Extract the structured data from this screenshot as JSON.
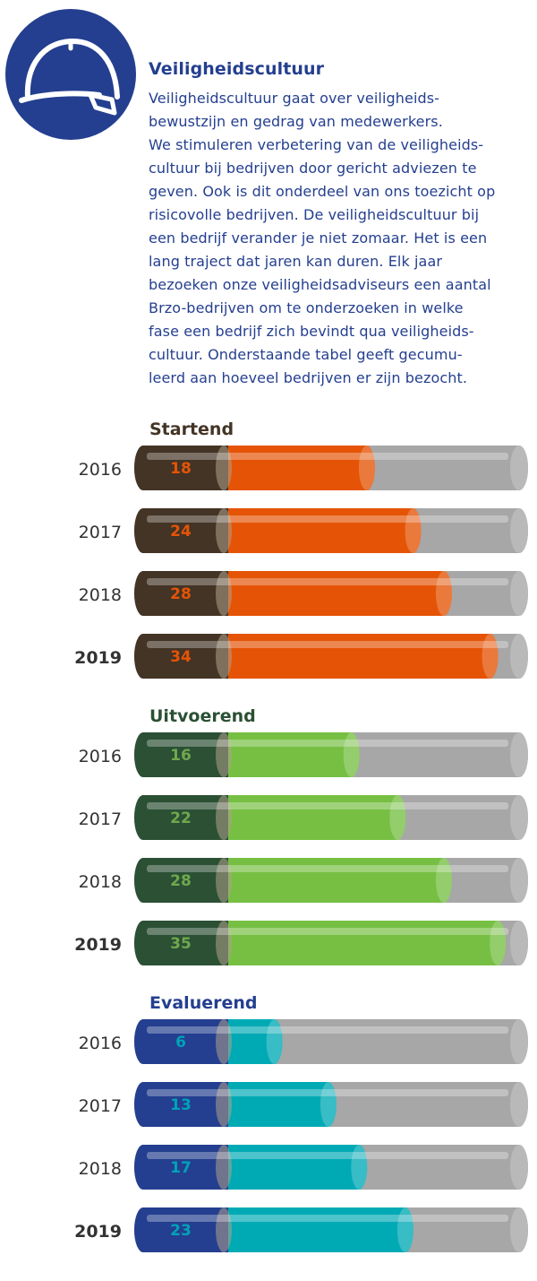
{
  "icon": {
    "name": "safety-helmet-icon",
    "circle_color": "#243f8f",
    "line_color": "#ffffff"
  },
  "header": {
    "title": "Veiligheidscultuur",
    "lines": [
      "Veiligheidscultuur gaat over veiligheids-",
      "bewustzijn en gedrag van medewerkers.",
      "We stimuleren  verbetering van de veiligheids-",
      "cultuur bij bedrijven door gericht adviezen te",
      "geven. Ook is dit onderdeel van ons toezicht op",
      "risicovolle bedrijven. De veiligheidscultuur bij",
      "een bedrijf verander je niet zomaar. Het is een",
      "lang traject dat jaren kan duren. Elk jaar",
      "bezoeken onze veiligheidsadviseurs een aantal",
      "Brzo-bedrijven om te onderzoeken in welke",
      "fase een bedrijf zich bevindt qua veiligheids-",
      "cultuur. Onderstaande tabel geeft gecumu-",
      "leerd aan hoeveel bedrijven er zijn bezocht."
    ]
  },
  "chart_data": {
    "type": "bar",
    "orientation": "horizontal",
    "xlim": [
      0,
      38
    ],
    "highlight_category": "2019",
    "groups": [
      {
        "name": "Startend",
        "colors": {
          "cap": "#433425",
          "fill": "#e55406",
          "value": "#e55406",
          "title": "#433425"
        },
        "categories": [
          "2016",
          "2017",
          "2018",
          "2019"
        ],
        "values": [
          18,
          24,
          28,
          34
        ]
      },
      {
        "name": "Uitvoerend",
        "colors": {
          "cap": "#2b5034",
          "fill": "#76bf43",
          "value": "#6fa84e",
          "title": "#2b5034"
        },
        "categories": [
          "2016",
          "2017",
          "2018",
          "2019"
        ],
        "values": [
          16,
          22,
          28,
          35
        ]
      },
      {
        "name": "Evaluerend",
        "colors": {
          "cap": "#243f8f",
          "fill": "#00aab5",
          "value": "#00a2b8",
          "title": "#243f8f"
        },
        "categories": [
          "2016",
          "2017",
          "2018",
          "2019"
        ],
        "values": [
          6,
          13,
          17,
          23
        ]
      }
    ]
  }
}
